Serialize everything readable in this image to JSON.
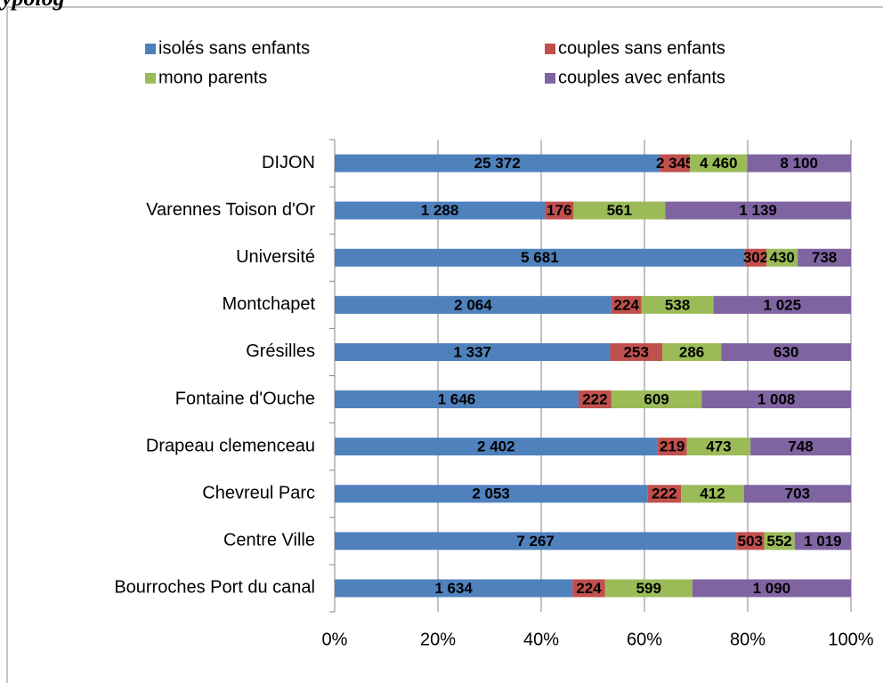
{
  "chart_data": {
    "type": "stacked-bar-100",
    "orientation": "horizontal",
    "title": "ypolog",
    "categories": [
      "DIJON",
      "Varennes Toison d'Or",
      "Université",
      "Montchapet",
      "Grésilles",
      "Fontaine d'Ouche",
      "Drapeau clemenceau",
      "Chevreul Parc",
      "Centre Ville",
      "Bourroches Port du canal"
    ],
    "series": [
      {
        "name": "isolés sans enfants",
        "color": "#4f81bd",
        "values": [
          25372,
          1288,
          5681,
          2064,
          1337,
          1646,
          2402,
          2053,
          7267,
          1634
        ],
        "value_labels": [
          "25 372",
          "1 288",
          "5 681",
          "2 064",
          "1 337",
          "1 646",
          "2 402",
          "2 053",
          "7 267",
          "1 634"
        ]
      },
      {
        "name": "couples sans enfants",
        "color": "#c0504d",
        "values": [
          2345,
          176,
          302,
          224,
          253,
          222,
          219,
          222,
          503,
          224
        ],
        "value_labels": [
          "2 345",
          "176",
          "302",
          "224",
          "253",
          "222",
          "219",
          "222",
          "503",
          "224"
        ]
      },
      {
        "name": "mono parents",
        "color": "#9bbb59",
        "values": [
          4460,
          561,
          430,
          538,
          286,
          609,
          473,
          412,
          552,
          599
        ],
        "value_labels": [
          "4 460",
          "561",
          "430",
          "538",
          "286",
          "609",
          "473",
          "412",
          "552",
          "599"
        ]
      },
      {
        "name": "couples avec enfants",
        "color": "#8064a2",
        "values": [
          8100,
          1139,
          738,
          1025,
          630,
          1008,
          748,
          703,
          1019,
          1090
        ],
        "value_labels": [
          "8 100",
          "1 139",
          "738",
          "1 025",
          "630",
          "1 008",
          "748",
          "703",
          "1 019",
          "1 090"
        ]
      }
    ],
    "xlim": [
      0,
      100
    ],
    "xticks": [
      {
        "value": 0,
        "label": "0%"
      },
      {
        "value": 20,
        "label": "20%"
      },
      {
        "value": 40,
        "label": "40%"
      },
      {
        "value": 60,
        "label": "60%"
      },
      {
        "value": 80,
        "label": "80%"
      },
      {
        "value": 100,
        "label": "100%"
      }
    ],
    "grid": true,
    "legend": "top"
  }
}
